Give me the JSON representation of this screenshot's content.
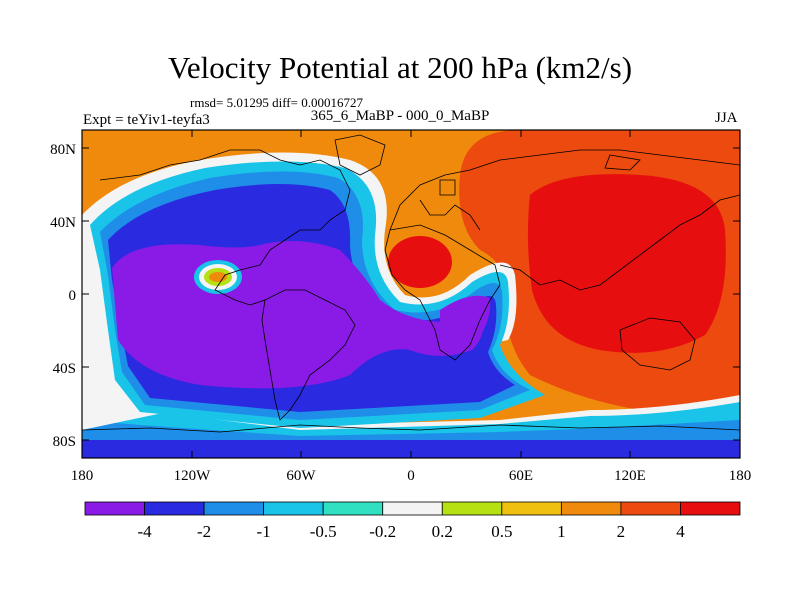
{
  "chart_data": {
    "type": "heatmap",
    "title": "Velocity Potential at 200 hPa (km2/s)",
    "stats": "rmsd= 5.01295 diff= 0.00016727",
    "experiment": "Expt = teYiv1-teyfa3",
    "period": "365_6_MaBP - 000_0_MaBP",
    "season": "JJA",
    "x_ticks": [
      "180",
      "120W",
      "60W",
      "0",
      "60E",
      "120E",
      "180"
    ],
    "y_ticks": [
      "80N",
      "40N",
      "0",
      "40S",
      "80S"
    ],
    "colorbar": {
      "levels": [
        "-4",
        "-2",
        "-1",
        "-0.5",
        "-0.2",
        "0.2",
        "0.5",
        "1",
        "2",
        "4"
      ],
      "colors": [
        "#8a1be6",
        "#2a2ae0",
        "#1e8ee8",
        "#19c4e8",
        "#31e0c0",
        "#f4f4f4",
        "#b5e012",
        "#f0c010",
        "#f08a0c",
        "#ec4a0e",
        "#e60e0e"
      ]
    }
  }
}
